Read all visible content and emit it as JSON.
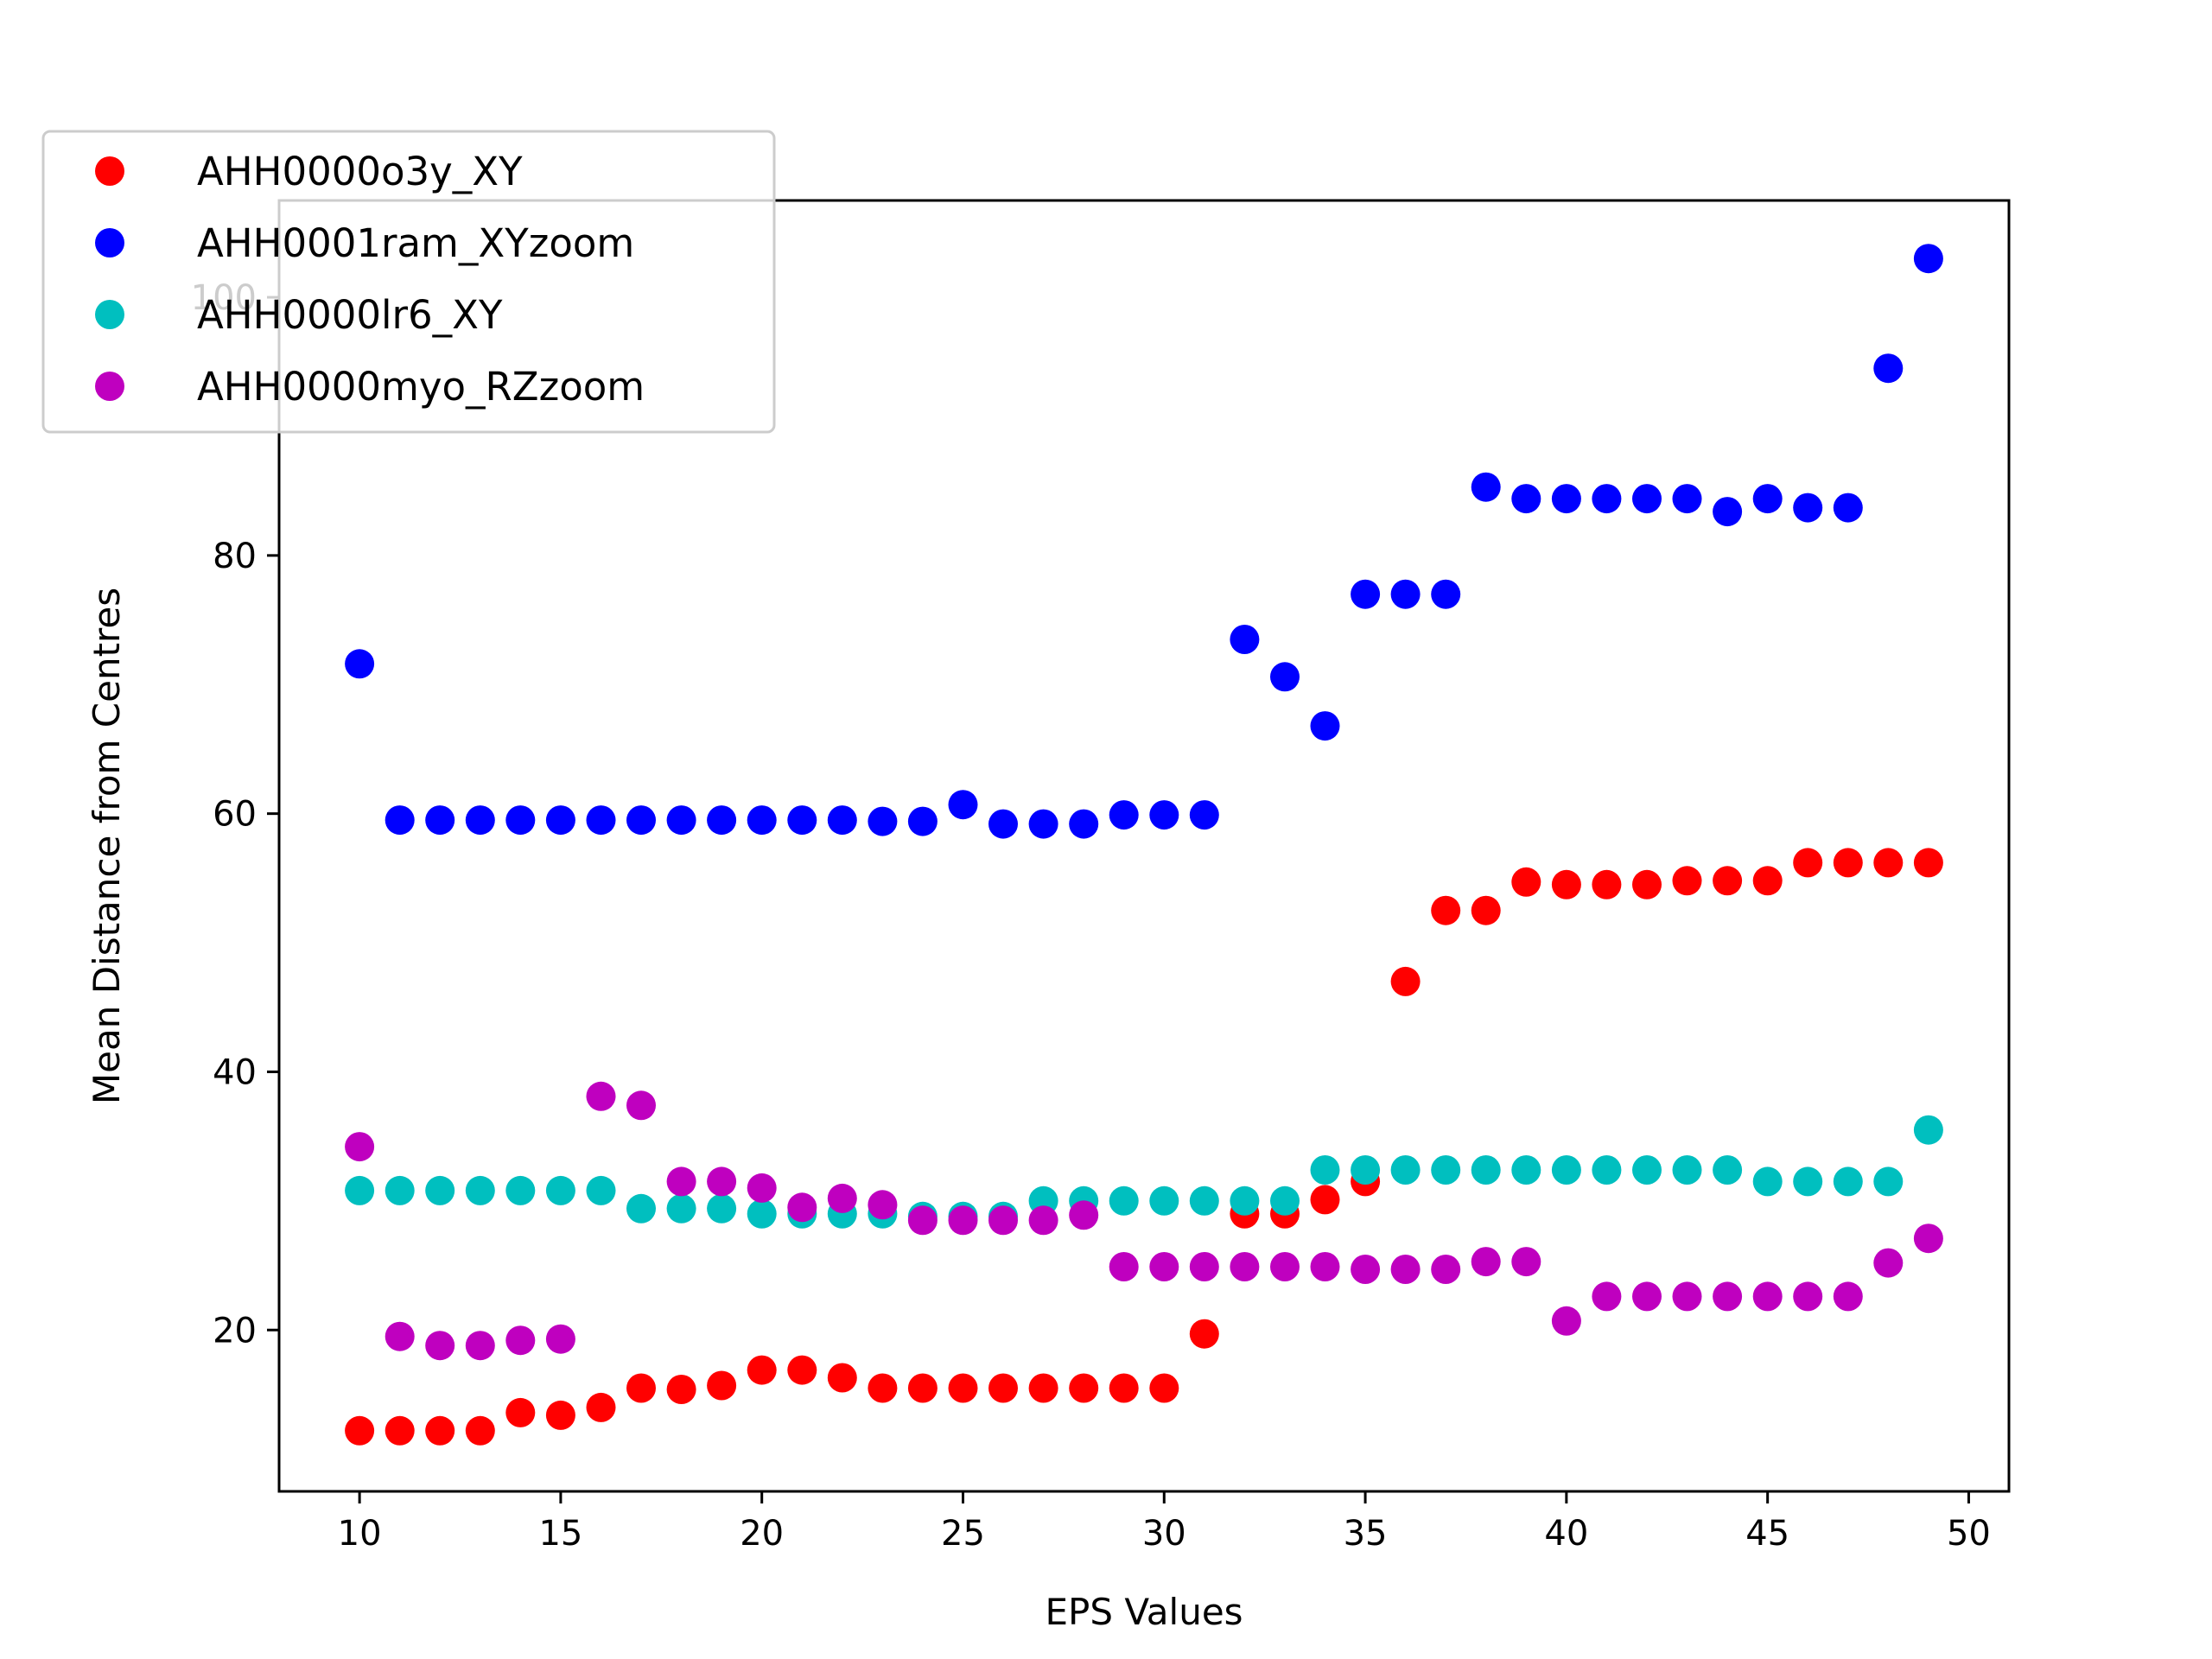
{
  "chart_data": {
    "type": "scatter",
    "title": "",
    "xlabel": "EPS Values",
    "ylabel": "Mean Distance from Centres",
    "xlim": [
      8,
      51
    ],
    "ylim": [
      7.5,
      107.5
    ],
    "xticks": [
      10,
      15,
      20,
      25,
      30,
      35,
      40,
      45,
      50
    ],
    "yticks": [
      20,
      40,
      60,
      80,
      100
    ],
    "grid": false,
    "legend_position": "upper-left",
    "series": [
      {
        "name": "AHH0000o3y_XY",
        "color": "#ff0000",
        "x": [
          10,
          11,
          12,
          13,
          14,
          15,
          16,
          17,
          18,
          19,
          20,
          21,
          22,
          23,
          24,
          25,
          26,
          27,
          28,
          29,
          30,
          31,
          32,
          33,
          34,
          35,
          36,
          37,
          38,
          39,
          40,
          41,
          42,
          43,
          44,
          45,
          46,
          47,
          48,
          49
        ],
        "y": [
          12.2,
          12.2,
          12.2,
          12.2,
          13.6,
          13.4,
          14.0,
          15.5,
          15.4,
          15.7,
          16.9,
          16.9,
          16.3,
          15.5,
          15.5,
          15.5,
          15.5,
          15.5,
          15.5,
          15.5,
          15.5,
          19.7,
          29.0,
          29.0,
          30.1,
          31.5,
          47.0,
          52.5,
          52.5,
          54.7,
          54.5,
          54.5,
          54.5,
          54.8,
          54.8,
          54.8,
          56.2,
          56.2,
          56.2,
          56.2
        ]
      },
      {
        "name": "AHH0001ram_XYzoom",
        "color": "#0000ff",
        "x": [
          10,
          11,
          12,
          13,
          14,
          15,
          16,
          17,
          18,
          19,
          20,
          21,
          22,
          23,
          24,
          25,
          26,
          27,
          28,
          29,
          30,
          31,
          32,
          33,
          34,
          35,
          36,
          37,
          38,
          39,
          40,
          41,
          42,
          43,
          44,
          45,
          46,
          47,
          48,
          49
        ],
        "y": [
          71.6,
          59.5,
          59.5,
          59.5,
          59.5,
          59.5,
          59.5,
          59.5,
          59.5,
          59.5,
          59.5,
          59.5,
          59.5,
          59.4,
          59.4,
          60.7,
          59.2,
          59.2,
          59.2,
          59.9,
          59.9,
          59.9,
          73.5,
          70.6,
          66.8,
          77.0,
          77.0,
          77.0,
          85.3,
          84.4,
          84.4,
          84.4,
          84.4,
          84.4,
          83.4,
          84.4,
          83.7,
          83.7,
          94.5,
          103.0
        ]
      },
      {
        "name": "AHH0000lr6_XY",
        "color": "#00bfbf",
        "x": [
          10,
          11,
          12,
          13,
          14,
          15,
          16,
          17,
          18,
          19,
          20,
          21,
          22,
          23,
          24,
          25,
          26,
          27,
          28,
          29,
          30,
          31,
          32,
          33,
          34,
          35,
          36,
          37,
          38,
          39,
          40,
          41,
          42,
          43,
          44,
          45,
          46,
          47,
          48,
          49
        ],
        "y": [
          30.8,
          30.8,
          30.8,
          30.8,
          30.8,
          30.8,
          30.8,
          29.4,
          29.4,
          29.4,
          29.0,
          29.0,
          29.0,
          29.0,
          28.8,
          28.8,
          28.8,
          30.0,
          30.0,
          30.0,
          30.0,
          30.0,
          30.0,
          30.0,
          32.4,
          32.4,
          32.4,
          32.4,
          32.4,
          32.4,
          32.4,
          32.4,
          32.4,
          32.4,
          32.4,
          31.5,
          31.5,
          31.5,
          31.5,
          35.5
        ]
      },
      {
        "name": "AHH0000myo_RZzoom",
        "color": "#bf00bf",
        "x": [
          10,
          11,
          12,
          13,
          14,
          15,
          16,
          17,
          18,
          19,
          20,
          21,
          22,
          23,
          24,
          25,
          26,
          27,
          28,
          29,
          30,
          31,
          32,
          33,
          34,
          35,
          36,
          37,
          38,
          39,
          40,
          41,
          42,
          43,
          44,
          45,
          46,
          47,
          48,
          49
        ],
        "y": [
          34.2,
          19.5,
          18.8,
          18.8,
          19.2,
          19.3,
          38.1,
          37.4,
          31.5,
          31.5,
          31.0,
          29.5,
          30.2,
          29.7,
          28.5,
          28.5,
          28.5,
          28.5,
          28.9,
          24.9,
          24.9,
          24.9,
          24.9,
          24.9,
          24.9,
          24.7,
          24.7,
          24.7,
          25.3,
          25.3,
          20.7,
          22.6,
          22.6,
          22.6,
          22.6,
          22.6,
          22.6,
          22.6,
          25.2,
          27.1
        ]
      }
    ]
  }
}
